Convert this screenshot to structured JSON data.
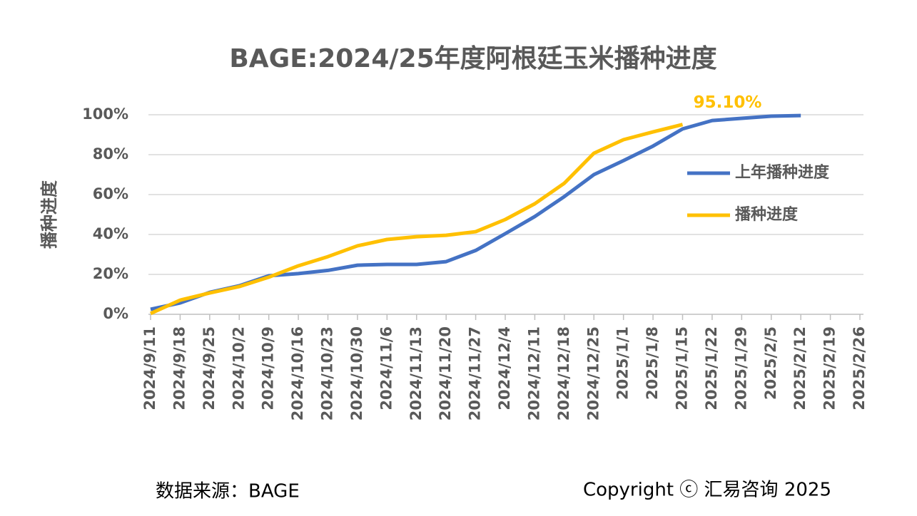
{
  "chart_data": {
    "type": "line",
    "title": "BAGE:2024/25年度阿根廷玉米播种进度",
    "y_label": "播种进度",
    "categories": [
      "2024/9/11",
      "2024/9/18",
      "2024/9/25",
      "2024/10/2",
      "2024/10/9",
      "2024/10/16",
      "2024/10/23",
      "2024/10/30",
      "2024/11/6",
      "2024/11/13",
      "2024/11/20",
      "2024/11/27",
      "2024/12/4",
      "2024/12/11",
      "2024/12/18",
      "2024/12/25",
      "2025/1/1",
      "2025/1/8",
      "2025/1/15",
      "2025/1/22",
      "2025/1/29",
      "2025/2/5",
      "2025/2/12",
      "2025/2/19",
      "2025/2/26"
    ],
    "series": [
      {
        "name": "上年播种进度",
        "color": "#4472c4",
        "values": [
          2.5,
          5.7,
          11,
          14.3,
          19.3,
          20.4,
          22,
          24.6,
          25,
          25,
          26.4,
          32,
          40.4,
          49,
          59,
          70,
          77,
          84.3,
          92.9,
          97.1,
          98.2,
          99.3,
          99.6,
          null,
          null
        ]
      },
      {
        "name": "播种进度",
        "color": "#ffc000",
        "values": [
          0.4,
          7.1,
          10.7,
          13.9,
          18.6,
          24.3,
          28.9,
          34.3,
          37.5,
          38.9,
          39.6,
          41.4,
          47.5,
          55.4,
          65.7,
          80.7,
          87.5,
          91.4,
          95.1,
          null,
          null,
          null,
          null,
          null,
          null
        ],
        "value_labels": [
          null,
          null,
          null,
          null,
          null,
          null,
          null,
          null,
          null,
          null,
          null,
          null,
          null,
          null,
          null,
          null,
          null,
          null,
          "95.10%",
          null,
          null,
          null,
          null,
          null,
          null
        ]
      }
    ],
    "ylim": [
      0,
      100
    ],
    "yticks": [
      {
        "value": 0,
        "label": "0%"
      },
      {
        "value": 20,
        "label": "20%"
      },
      {
        "value": 40,
        "label": "40%"
      },
      {
        "value": 60,
        "label": "60%"
      },
      {
        "value": 80,
        "label": "80%"
      },
      {
        "value": 100,
        "label": "100%"
      }
    ],
    "grid": true,
    "legend": "right",
    "source": "数据来源：BAGE",
    "copyright": "Copyright ⓒ 汇易咨询 2025"
  }
}
